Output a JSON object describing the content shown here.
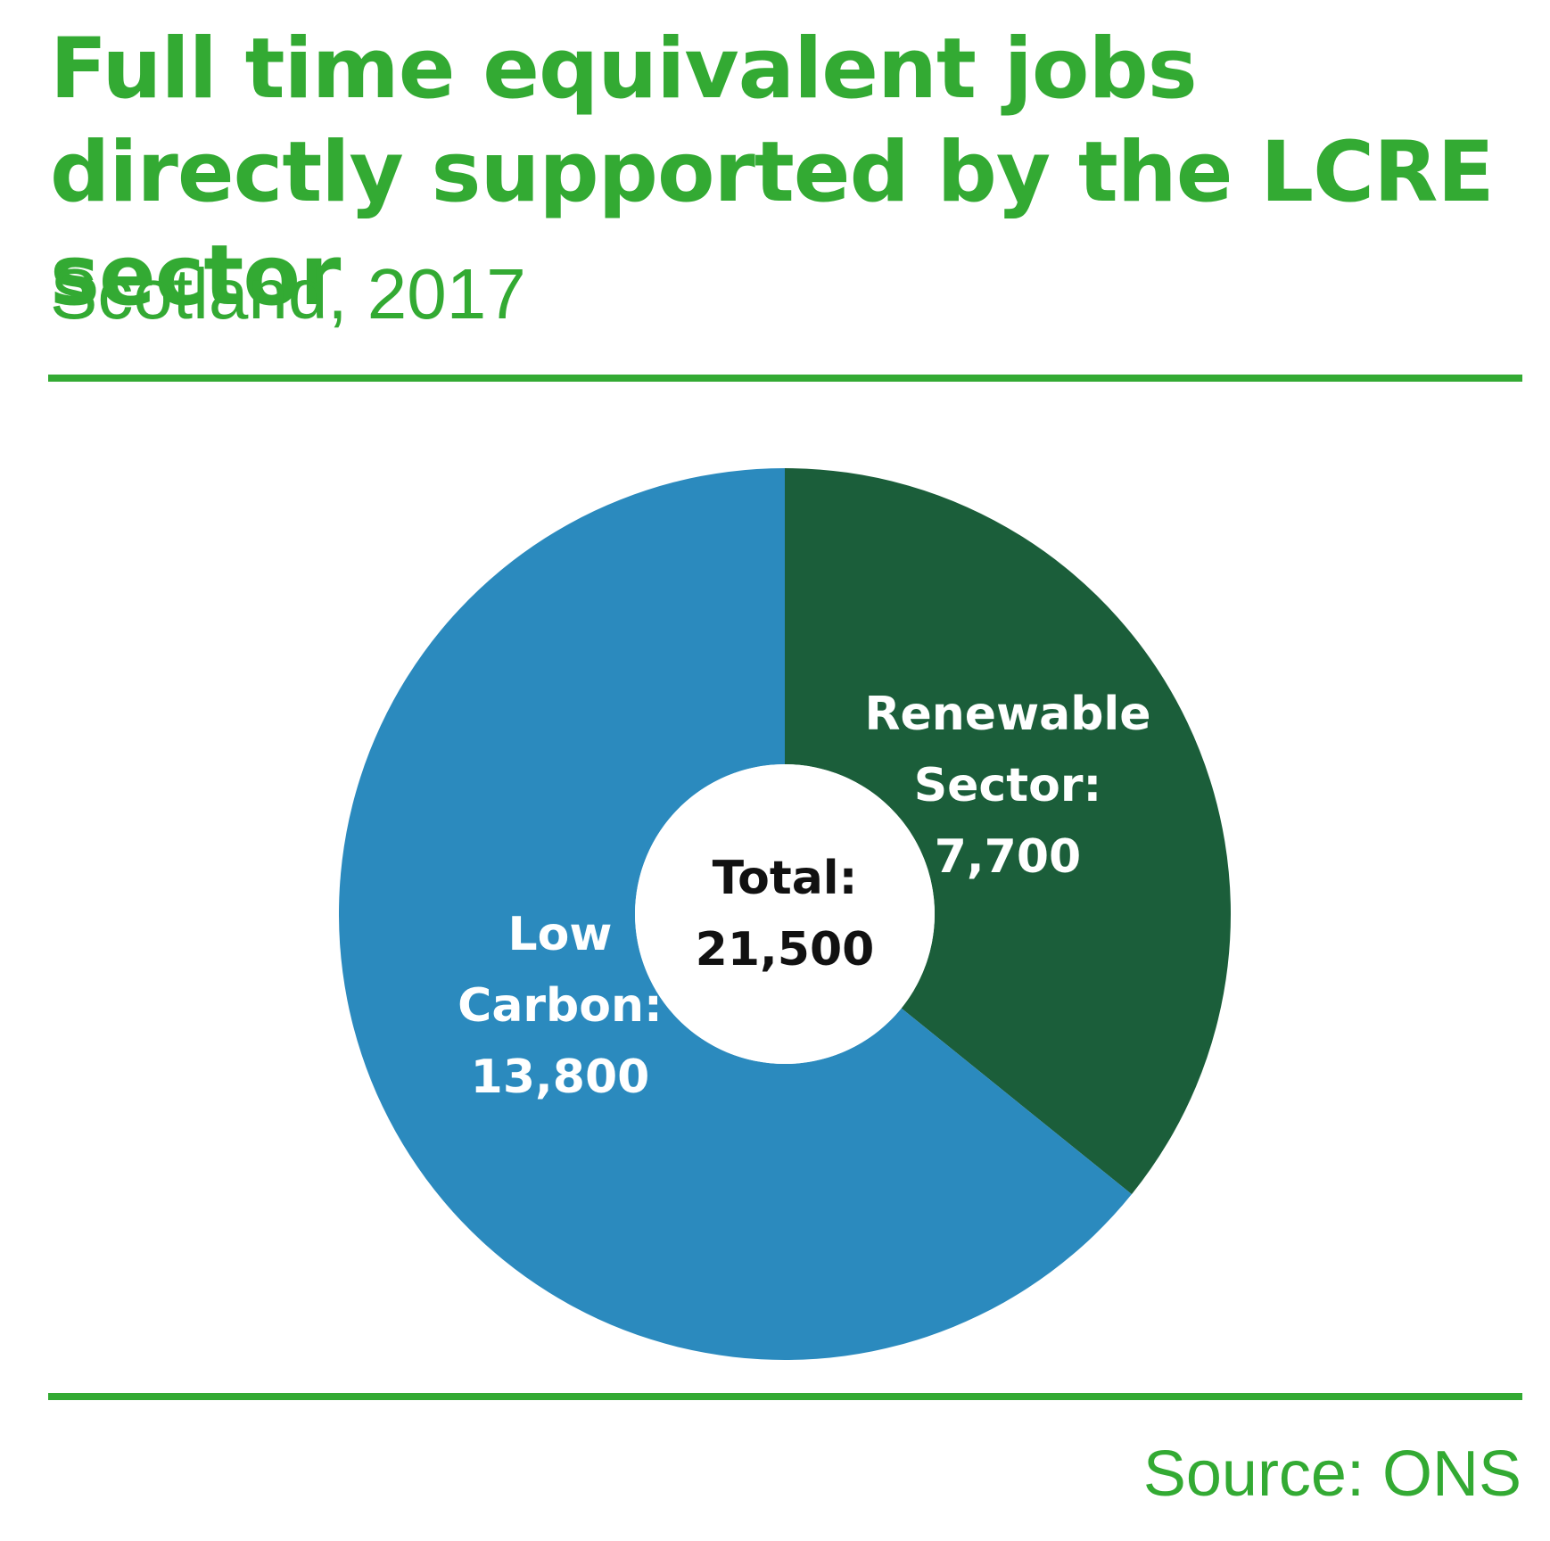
{
  "title": "Full time equivalent jobs directly supported by the LCRE sector",
  "subtitle": "Scotland, 2017",
  "source": "Source: ONS",
  "colors": {
    "accent": "#33AA33",
    "renewable": "#1B5E3A",
    "low_carbon": "#2B8ABE",
    "center_text": "#111111",
    "slice_text": "#FFFFFF"
  },
  "chart_data": {
    "type": "pie",
    "donut": true,
    "center_label": [
      "Total:",
      "21,500"
    ],
    "total": 21500,
    "slices": [
      {
        "name": "Renewable Sector",
        "value": 7700,
        "label_lines": [
          "Renewable",
          "Sector:",
          "7,700"
        ]
      },
      {
        "name": "Low Carbon",
        "value": 13800,
        "label_lines": [
          "Low",
          "Carbon:",
          "13,800"
        ]
      }
    ]
  }
}
